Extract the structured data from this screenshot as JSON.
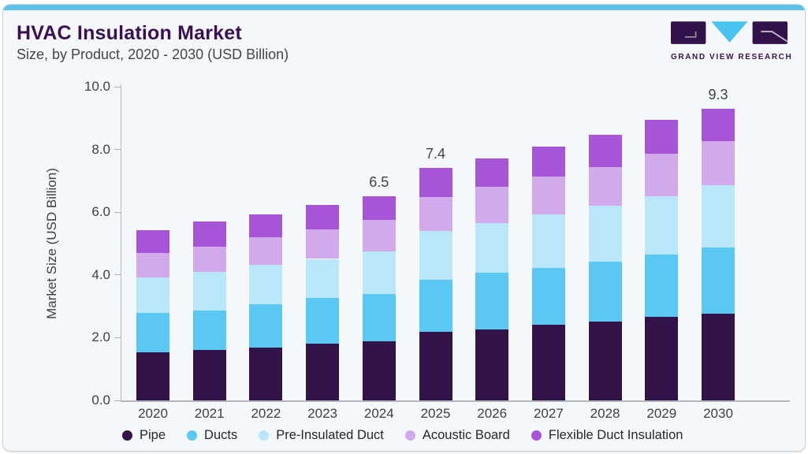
{
  "header": {
    "title": "HVAC Insulation Market",
    "subtitle": "Size, by Product, 2020 - 2030 (USD Billion)"
  },
  "logo": {
    "text": "GRAND VIEW RESEARCH"
  },
  "colors": {
    "accent_bar": "#5fc3e9",
    "title_text": "#3a1053",
    "body_text": "#3b4049",
    "card_bg": "#f4f8fb",
    "card_border": "#ccd3da",
    "axis_line": "#b2b7be",
    "logo_dark": "#32124a",
    "logo_blue": "#49c4f0"
  },
  "chart_data": {
    "type": "bar",
    "stacked": true,
    "title": "HVAC Insulation Market Size, by Product, 2020 - 2030 (USD Billion)",
    "categories": [
      "2020",
      "2021",
      "2022",
      "2023",
      "2024",
      "2025",
      "2026",
      "2027",
      "2028",
      "2029",
      "2030"
    ],
    "series": [
      {
        "name": "Pipe",
        "color": "#321349",
        "values": [
          1.54,
          1.61,
          1.68,
          1.81,
          1.89,
          2.18,
          2.26,
          2.41,
          2.52,
          2.67,
          2.76
        ]
      },
      {
        "name": "Ducts",
        "color": "#5bc8f3",
        "values": [
          1.24,
          1.26,
          1.39,
          1.46,
          1.51,
          1.66,
          1.82,
          1.82,
          1.89,
          1.99,
          2.12
        ]
      },
      {
        "name": "Pre-Insulated Duct",
        "color": "#b9e6f8",
        "values": [
          1.13,
          1.22,
          1.25,
          1.24,
          1.36,
          1.56,
          1.58,
          1.71,
          1.79,
          1.86,
          1.98
        ]
      },
      {
        "name": "Acoustic Board",
        "color": "#d2a9ea",
        "values": [
          0.78,
          0.82,
          0.89,
          0.93,
          0.99,
          1.08,
          1.15,
          1.19,
          1.24,
          1.34,
          1.41
        ]
      },
      {
        "name": "Flexible Duct Insulation",
        "color": "#a655d8",
        "values": [
          0.73,
          0.79,
          0.72,
          0.8,
          0.75,
          0.92,
          0.91,
          0.95,
          1.03,
          1.09,
          1.03
        ]
      }
    ],
    "bar_total_labels": {
      "2024": "6.5",
      "2025": "7.4",
      "2030": "9.3"
    },
    "totals": [
      5.42,
      5.7,
      5.93,
      6.24,
      6.5,
      7.4,
      7.72,
      8.08,
      8.47,
      8.95,
      9.3
    ],
    "xlabel": "",
    "ylabel": "Market Size (USD Billion)",
    "ylim": [
      0,
      10
    ],
    "yticks": [
      "0.0",
      "2.0",
      "4.0",
      "6.0",
      "8.0",
      "10.0"
    ],
    "grid": false,
    "legend_position": "bottom"
  }
}
